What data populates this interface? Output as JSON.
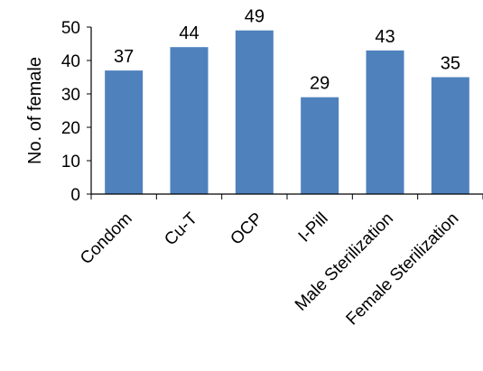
{
  "chart_data": {
    "type": "bar",
    "title": "",
    "xlabel": "",
    "ylabel": "No. of female",
    "ylim": [
      0,
      50
    ],
    "yticks": [
      0,
      10,
      20,
      30,
      40,
      50
    ],
    "categories": [
      "Condom",
      "Cu-T",
      "OCP",
      "I-Pill",
      "Male Sterilization",
      "Female Sterilization"
    ],
    "values": [
      37,
      44,
      49,
      29,
      43,
      35
    ],
    "bar_color": "#4f81bd",
    "data_labels": true,
    "grid": false,
    "legend": "none"
  }
}
